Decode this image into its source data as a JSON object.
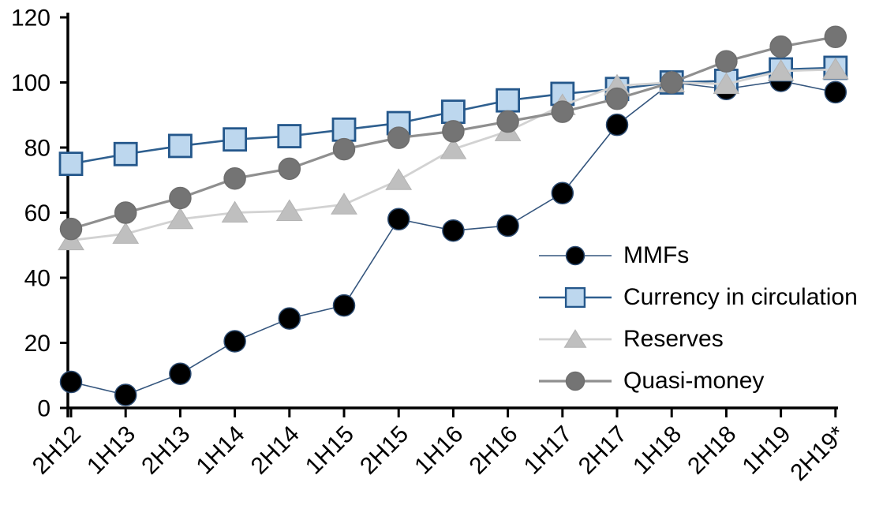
{
  "chart_data": {
    "type": "line",
    "title": "",
    "xlabel": "",
    "ylabel": "",
    "categories": [
      "2H12",
      "1H13",
      "2H13",
      "1H14",
      "2H14",
      "1H15",
      "2H15",
      "1H16",
      "2H16",
      "1H17",
      "2H17",
      "1H18",
      "2H18",
      "1H19",
      "2H19*"
    ],
    "series": [
      {
        "name": "MMFs",
        "marker": "circle",
        "marker_fill": "#000000",
        "marker_stroke": "#2B4A70",
        "line_color": "#35567E",
        "line_width": 1.6,
        "values": [
          8,
          4,
          10.5,
          20.5,
          27.5,
          31.5,
          58,
          54.5,
          56,
          66,
          87,
          100,
          98,
          100.5,
          97
        ]
      },
      {
        "name": "Currency in circulation",
        "marker": "square",
        "marker_fill": "#BDD7EE",
        "marker_stroke": "#24578B",
        "line_color": "#2E5F8F",
        "line_width": 2.6,
        "values": [
          75,
          78,
          80.5,
          82.5,
          83.5,
          85.5,
          87.5,
          91,
          94.5,
          96.5,
          98,
          100,
          100.5,
          104,
          104.5
        ]
      },
      {
        "name": "Reserves",
        "marker": "triangle",
        "marker_fill": "#BFBFBF",
        "marker_stroke": "#B3B3B3",
        "line_color": "#D2D2D2",
        "line_width": 2.8,
        "values": [
          51.5,
          53.5,
          58,
          60,
          60.5,
          62.5,
          70,
          79.5,
          85,
          93,
          99,
          100,
          99.5,
          103.5,
          104
        ]
      },
      {
        "name": "Quasi-money",
        "marker": "circle",
        "marker_fill": "#747474",
        "marker_stroke": "#6E6E6E",
        "line_color": "#8F8F8F",
        "line_width": 3.2,
        "values": [
          55,
          60,
          64.5,
          70.5,
          73.5,
          79.5,
          83,
          85,
          88,
          91,
          95,
          100,
          106.5,
          111,
          114
        ]
      }
    ],
    "yticks": [
      0,
      20,
      40,
      60,
      80,
      100,
      120
    ],
    "ylim": [
      0,
      120
    ],
    "grid": false,
    "legend_position": "inside-right",
    "axis_color": "#000000",
    "text_color": "#000000"
  }
}
